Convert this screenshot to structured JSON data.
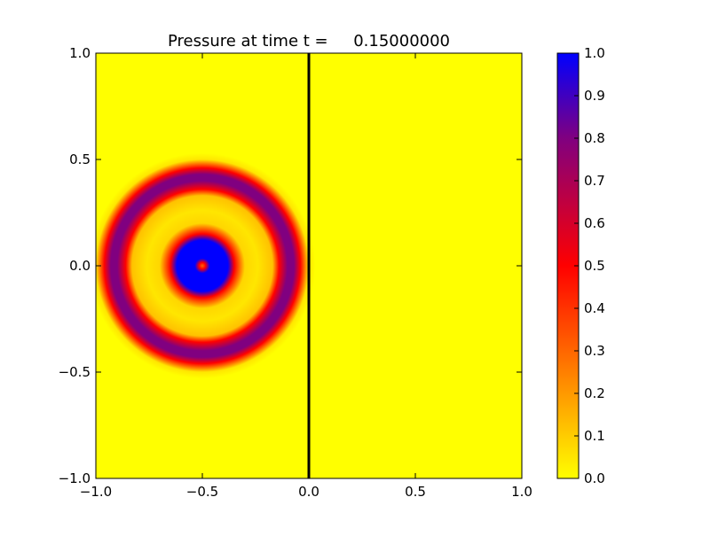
{
  "chart_data": {
    "type": "heatmap",
    "title": "Pressure at time t =     0.15000000",
    "xlabel": "",
    "ylabel": "",
    "xlim": [
      -1.0,
      1.0
    ],
    "ylim": [
      -1.0,
      1.0
    ],
    "x_ticks": [
      {
        "value": -1.0,
        "label": "−1.0"
      },
      {
        "value": -0.5,
        "label": "−0.5"
      },
      {
        "value": 0.0,
        "label": "0.0"
      },
      {
        "value": 0.5,
        "label": "0.5"
      },
      {
        "value": 1.0,
        "label": "1.0"
      }
    ],
    "y_ticks": [
      {
        "value": -1.0,
        "label": "−1.0"
      },
      {
        "value": -0.5,
        "label": "−0.5"
      },
      {
        "value": 0.0,
        "label": "0.0"
      },
      {
        "value": 0.5,
        "label": "0.5"
      },
      {
        "value": 1.0,
        "label": "1.0"
      }
    ],
    "grid": false,
    "colormap": {
      "name": "autumn-to-blue",
      "range": [
        0.0,
        1.0
      ],
      "stops": [
        {
          "value": 0.0,
          "color": "#ffff00"
        },
        {
          "value": 0.5,
          "color": "#ff0000"
        },
        {
          "value": 0.8,
          "color": "#800080"
        },
        {
          "value": 1.0,
          "color": "#0000ff"
        }
      ],
      "ticks": [
        {
          "value": 0.0,
          "label": "0.0"
        },
        {
          "value": 0.1,
          "label": "0.1"
        },
        {
          "value": 0.2,
          "label": "0.2"
        },
        {
          "value": 0.3,
          "label": "0.3"
        },
        {
          "value": 0.4,
          "label": "0.4"
        },
        {
          "value": 0.5,
          "label": "0.5"
        },
        {
          "value": 0.6,
          "label": "0.6"
        },
        {
          "value": 0.7,
          "label": "0.7"
        },
        {
          "value": 0.8,
          "label": "0.8"
        },
        {
          "value": 0.9,
          "label": "0.9"
        },
        {
          "value": 1.0,
          "label": "1.0"
        }
      ]
    },
    "field": {
      "center": [
        -0.5,
        0.0
      ],
      "background_value": 0.0,
      "radial_profile": [
        {
          "r": 0.0,
          "value": 0.3
        },
        {
          "r": 0.015,
          "value": 0.5
        },
        {
          "r": 0.035,
          "value": 1.0
        },
        {
          "r": 0.12,
          "value": 1.0
        },
        {
          "r": 0.15,
          "value": 0.5
        },
        {
          "r": 0.2,
          "value": 0.08
        },
        {
          "r": 0.26,
          "value": 0.05
        },
        {
          "r": 0.33,
          "value": 0.12
        },
        {
          "r": 0.36,
          "value": 0.5
        },
        {
          "r": 0.4,
          "value": 0.8
        },
        {
          "r": 0.43,
          "value": 0.8
        },
        {
          "r": 0.46,
          "value": 0.5
        },
        {
          "r": 0.5,
          "value": 0.05
        },
        {
          "r": 0.53,
          "value": 0.0
        }
      ]
    },
    "interface_line": {
      "x": 0.0,
      "color": "#000000"
    }
  }
}
